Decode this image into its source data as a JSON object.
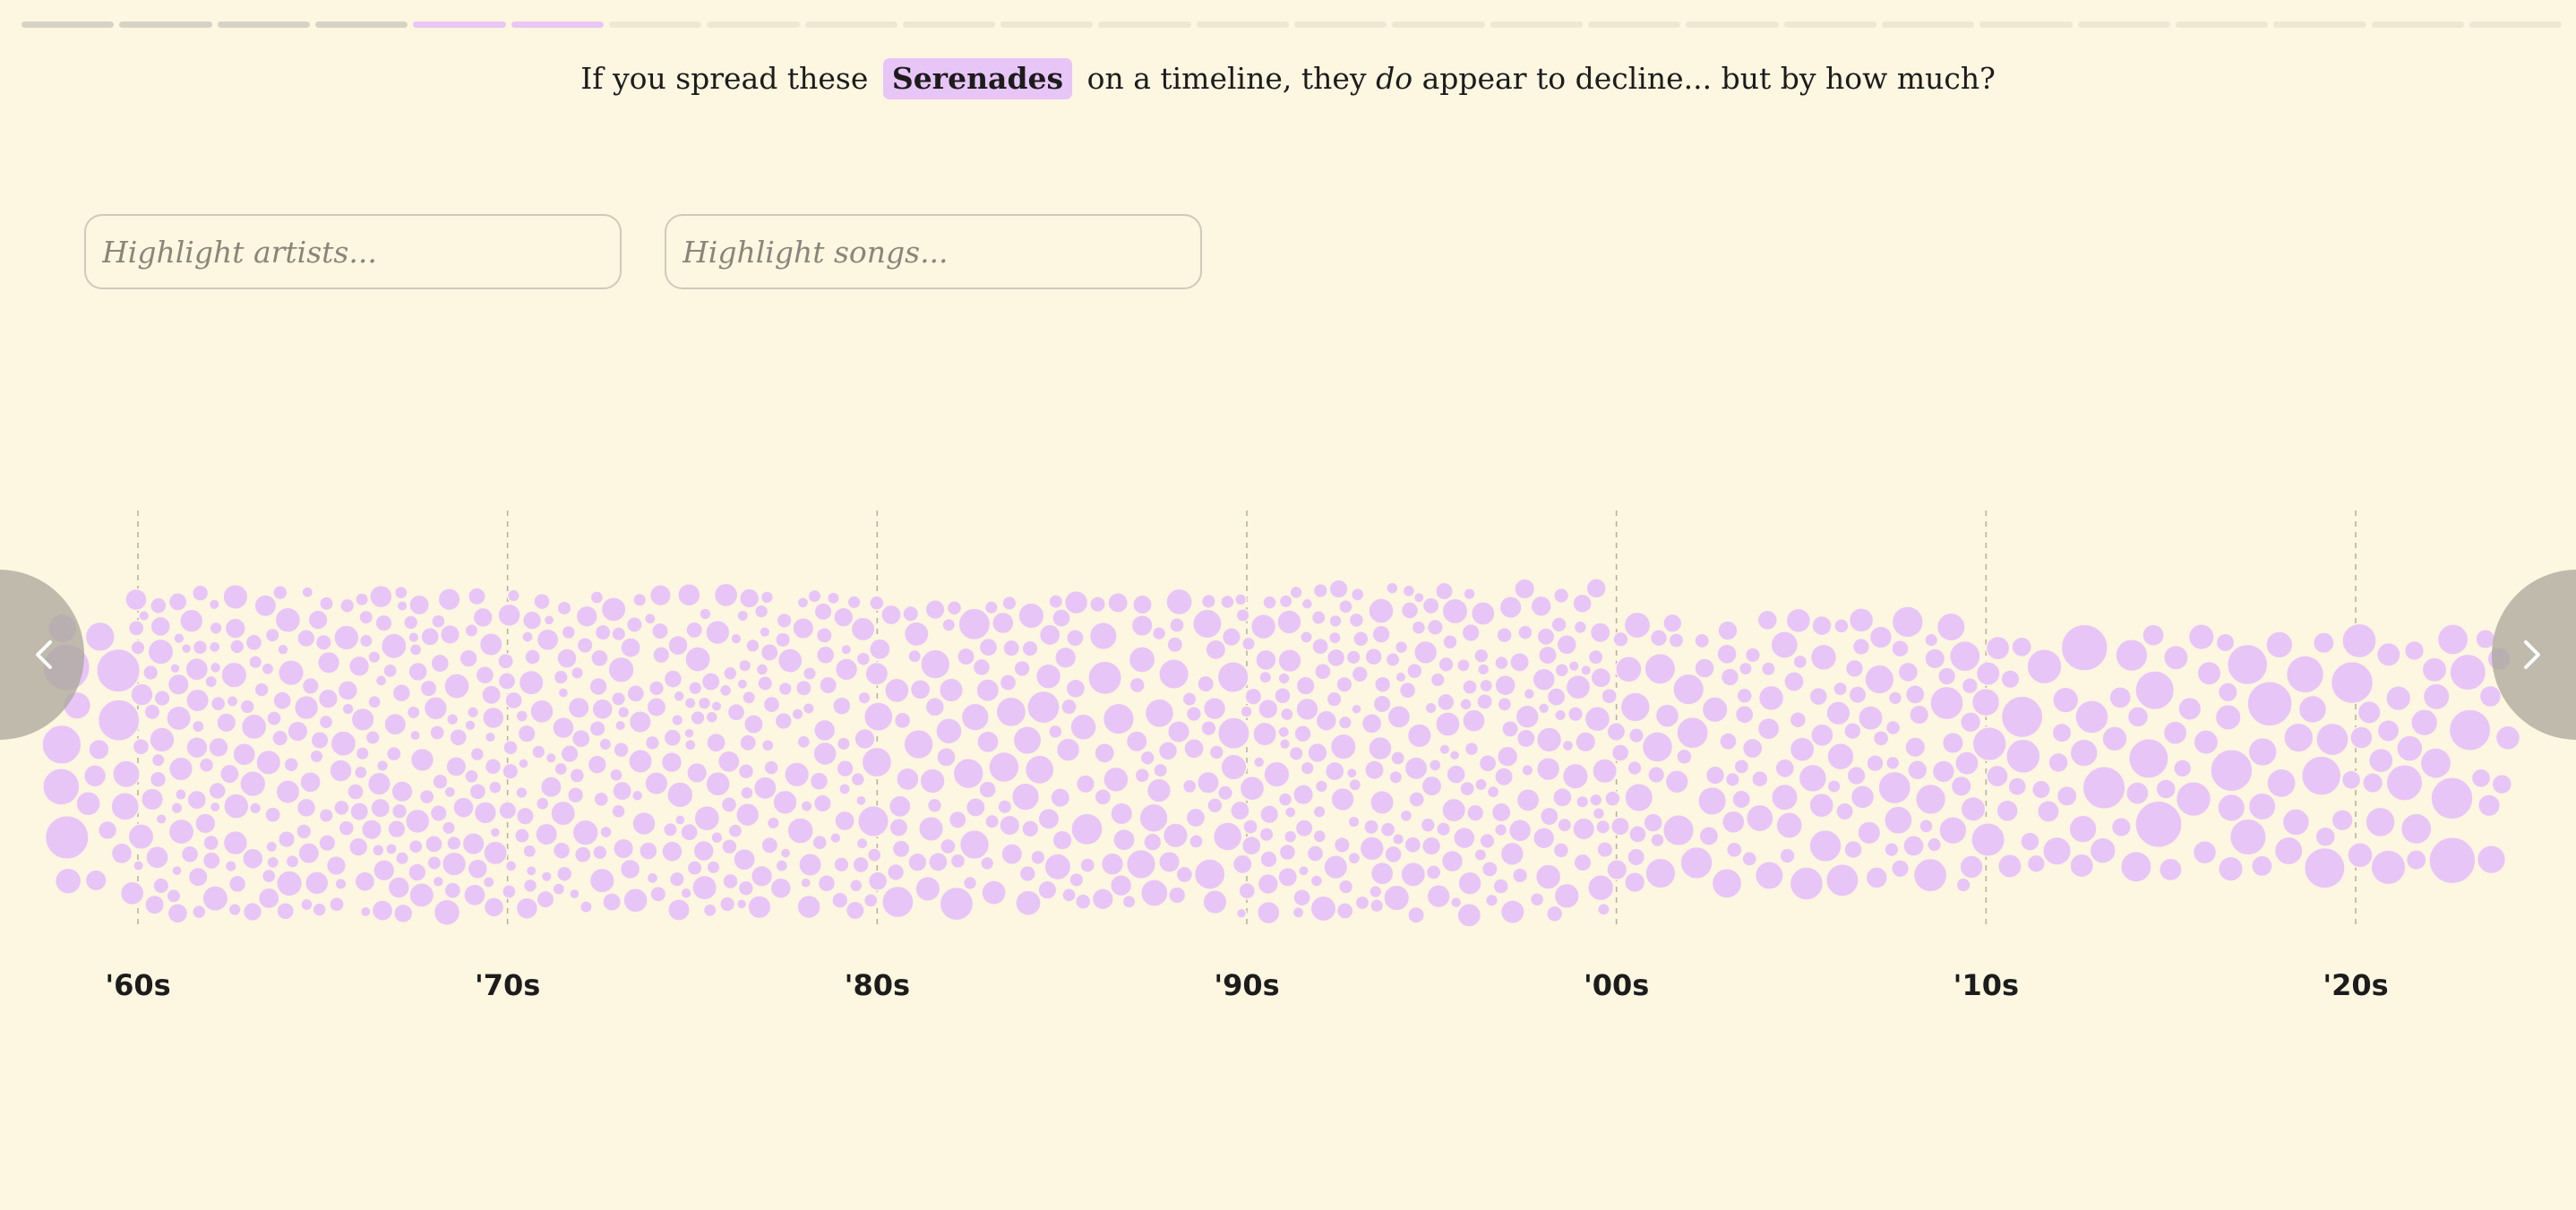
{
  "progress": {
    "total_segments": 26,
    "completed": 4,
    "current": 2
  },
  "caption": {
    "before": "If you spread these",
    "highlight": "Serenades",
    "middle": "on a timeline, they",
    "emphasis": "do",
    "after": "appear to decline... but by how much?"
  },
  "search": {
    "artists_placeholder": "Highlight artists...",
    "songs_placeholder": "Highlight songs..."
  },
  "navigation": {
    "prev_icon": "chevron-left-icon",
    "next_icon": "chevron-right-icon"
  },
  "colors": {
    "background": "#fdf6e1",
    "bubble": "#e8c5f7",
    "nav_button": "#aaa598"
  },
  "chart_data": {
    "type": "scatter",
    "x_axis": {
      "ticks": [
        "'60s",
        "'70s",
        "'80s",
        "'90s",
        "'00s",
        "'10s",
        "'20s"
      ],
      "tick_years": [
        1960,
        1970,
        1980,
        1990,
        2000,
        2010,
        2020
      ],
      "range": [
        1958,
        2025
      ]
    },
    "density_by_decade": [
      {
        "decade": "'60s",
        "relative_count": 1.0
      },
      {
        "decade": "'70s",
        "relative_count": 0.95
      },
      {
        "decade": "'80s",
        "relative_count": 0.85
      },
      {
        "decade": "'90s",
        "relative_count": 1.05
      },
      {
        "decade": "'00s",
        "relative_count": 0.55
      },
      {
        "decade": "'10s",
        "relative_count": 0.3
      },
      {
        "decade": "'20s",
        "relative_count": 0.3
      }
    ],
    "grid": true
  }
}
